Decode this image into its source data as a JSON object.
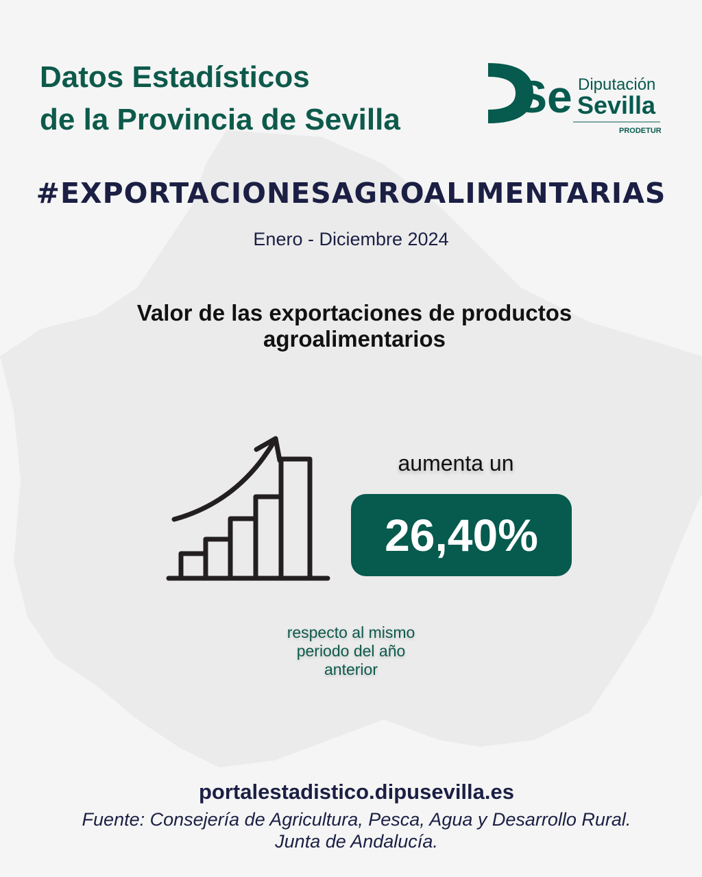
{
  "header": {
    "title_line1": "Datos Estadísticos",
    "title_line2": "de la Provincia de Sevilla",
    "logo": {
      "mark": "DSe",
      "line1": "Diputación",
      "line2": "Sevilla",
      "line3": "PRODETUR"
    }
  },
  "hashtag": "#EXPORTACIONESAGROALIMENTARIAS",
  "period": "Enero - Diciembre 2024",
  "subtitle_line1": "Valor de las exportaciones de productos",
  "subtitle_line2": "agroalimentarios",
  "stat": {
    "prefix": "aumenta un",
    "value": "26,40%",
    "suffix_line1": "respecto al mismo",
    "suffix_line2": "periodo del año",
    "suffix_line3": "anterior",
    "icon": "growth-bar-chart-icon"
  },
  "footer": {
    "url": "portalestadistico.dipusevilla.es",
    "source_line1": "Fuente: Consejería de Agricultura, Pesca, Agua y Desarrollo Rural.",
    "source_line2": "Junta de Andalucía."
  },
  "colors": {
    "brand_green": "#065a4e",
    "navy": "#1b1f44",
    "background": "#f5f5f5",
    "map": "#ebebeb"
  }
}
